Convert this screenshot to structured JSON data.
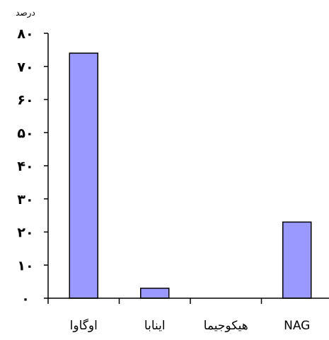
{
  "chart_data": {
    "type": "bar",
    "ylabel": "درصد",
    "categories": [
      "اوگاوا",
      "اینابا",
      "هیکوجیما",
      "NAG"
    ],
    "values": [
      74,
      3,
      0,
      23
    ],
    "ylim": [
      0,
      80
    ],
    "yticks": [
      0,
      10,
      20,
      30,
      40,
      50,
      60,
      70,
      80
    ],
    "ytick_labels": [
      "۰",
      "۱۰",
      "۲۰",
      "۳۰",
      "۴۰",
      "۵۰",
      "۶۰",
      "۷۰",
      "۸۰"
    ],
    "grid": false,
    "legend": "none",
    "bar_color": "#9999ff",
    "bar_edge_color": "#000000"
  }
}
